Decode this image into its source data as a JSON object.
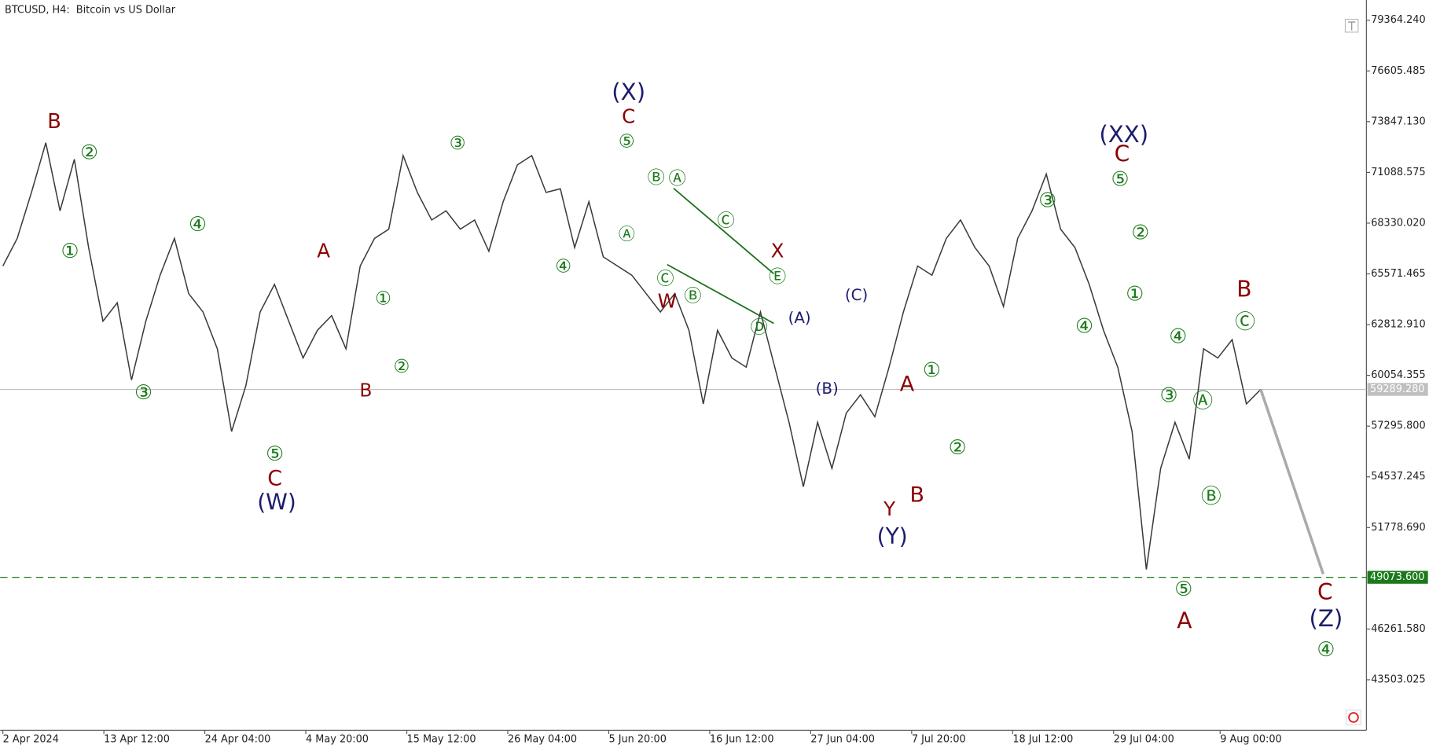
{
  "header": {
    "title": "BTCUSD, H4:  Bitcoin vs US Dollar"
  },
  "chart_data": {
    "type": "line",
    "color": "#3a3a3a",
    "values": [
      66000,
      67500,
      70000,
      72700,
      69000,
      71800,
      67000,
      63000,
      64000,
      59800,
      63000,
      65500,
      67500,
      64500,
      63500,
      61500,
      57000,
      59500,
      63500,
      65000,
      63000,
      61000,
      62500,
      63300,
      61500,
      66000,
      67500,
      68000,
      72000,
      70000,
      68500,
      69000,
      68000,
      68500,
      66800,
      69500,
      71500,
      72000,
      70000,
      70200,
      67000,
      69500,
      66500,
      66000,
      65500,
      64500,
      63500,
      64500,
      62500,
      58500,
      62500,
      61000,
      60500,
      63500,
      60500,
      57500,
      54000,
      57500,
      55000,
      58000,
      59000,
      57800,
      60500,
      63500,
      66000,
      65500,
      67500,
      68500,
      67000,
      66000,
      63800,
      67500,
      69000,
      71000,
      68000,
      67000,
      65000,
      62500,
      60500,
      57000,
      49500,
      55000,
      57500,
      55500,
      61500,
      61000,
      62000,
      58500,
      59289.28
    ],
    "forecast": [
      59289.28,
      49250
    ],
    "forecast_color": "#aaaaaa",
    "ylim": [
      40755,
      80463
    ],
    "yticks": [
      {
        "value": 79364.24,
        "label": "79364.240"
      },
      {
        "value": 76605.485,
        "label": "76605.485"
      },
      {
        "value": 73847.13,
        "label": "73847.130"
      },
      {
        "value": 71088.575,
        "label": "71088.575"
      },
      {
        "value": 68330.02,
        "label": "68330.020"
      },
      {
        "value": 65571.465,
        "label": "65571.465"
      },
      {
        "value": 62812.91,
        "label": "62812.910"
      },
      {
        "value": 60054.355,
        "label": "60054.355"
      },
      {
        "value": 57295.8,
        "label": "57295.800"
      },
      {
        "value": 54537.245,
        "label": "54537.245"
      },
      {
        "value": 51778.69,
        "label": "51778.690"
      },
      {
        "value": 46261.58,
        "label": "46261.580"
      },
      {
        "value": 43503.025,
        "label": "43503.025"
      }
    ],
    "x_labels": [
      "2 Apr 2024",
      "13 Apr 12:00",
      "24 Apr 04:00",
      "4 May 20:00",
      "15 May 12:00",
      "26 May 04:00",
      "5 Jun 20:00",
      "16 Jun 12:00",
      "27 Jun 04:00",
      "7 Jul 20:00",
      "18 Jul 12:00",
      "29 Jul 04:00",
      "9 Aug 00:00"
    ],
    "price_levels": [
      {
        "value": 59289.28,
        "label": "59289.280",
        "color": "#c0c0c0",
        "dashed": false
      },
      {
        "value": 49073.6,
        "label": "49073.600",
        "color": "#1a7a1a",
        "dashed": true
      }
    ],
    "annotations": [
      {
        "text": "B",
        "color": "#8b0000"
      },
      {
        "text": "②",
        "color": "#1a7a1a"
      },
      {
        "text": "①",
        "color": "#1a7a1a"
      },
      {
        "text": "③",
        "color": "#1a7a1a"
      },
      {
        "text": "④",
        "color": "#1a7a1a"
      },
      {
        "text": "A",
        "color": "#8b0000"
      },
      {
        "text": "①",
        "color": "#1a7a1a"
      },
      {
        "text": "②",
        "color": "#1a7a1a"
      },
      {
        "text": "B",
        "color": "#8b0000"
      },
      {
        "text": "⑤",
        "color": "#1a7a1a"
      },
      {
        "text": "C",
        "color": "#8b0000"
      },
      {
        "text": "(W)",
        "color": "#1c1c6e"
      },
      {
        "text": "③",
        "color": "#1a7a1a"
      },
      {
        "text": "④",
        "color": "#1a7a1a"
      },
      {
        "text": "(X)",
        "color": "#1c1c6e"
      },
      {
        "text": "C",
        "color": "#8b0000"
      },
      {
        "text": "⑤",
        "color": "#1a7a1a"
      },
      {
        "text": "Ⓐ",
        "color": "#1a7a1a"
      },
      {
        "text": "Ⓑ",
        "color": "#1a7a1a"
      },
      {
        "text": "Ⓐ",
        "color": "#1a7a1a"
      },
      {
        "text": "Ⓒ",
        "color": "#1a7a1a"
      },
      {
        "text": "X",
        "color": "#8b0000"
      },
      {
        "text": "Ⓔ",
        "color": "#1a7a1a"
      },
      {
        "text": "Ⓒ",
        "color": "#1a7a1a"
      },
      {
        "text": "W",
        "color": "#8b0000"
      },
      {
        "text": "Ⓑ",
        "color": "#1a7a1a"
      },
      {
        "text": "Ⓓ",
        "color": "#1a7a1a"
      },
      {
        "text": "(A)",
        "color": "#1c1c6e"
      },
      {
        "text": "(C)",
        "color": "#1c1c6e"
      },
      {
        "text": "(B)",
        "color": "#1c1c6e"
      },
      {
        "text": "A",
        "color": "#8b0000"
      },
      {
        "text": "①",
        "color": "#1a7a1a"
      },
      {
        "text": "②",
        "color": "#1a7a1a"
      },
      {
        "text": "B",
        "color": "#8b0000"
      },
      {
        "text": "Y",
        "color": "#8b0000"
      },
      {
        "text": "(Y)",
        "color": "#1c1c6e"
      },
      {
        "text": "③",
        "color": "#1a7a1a"
      },
      {
        "text": "④",
        "color": "#1a7a1a"
      },
      {
        "text": "(XX)",
        "color": "#1c1c6e"
      },
      {
        "text": "C",
        "color": "#8b0000"
      },
      {
        "text": "⑤",
        "color": "#1a7a1a"
      },
      {
        "text": "②",
        "color": "#1a7a1a"
      },
      {
        "text": "①",
        "color": "#1a7a1a"
      },
      {
        "text": "④",
        "color": "#1a7a1a"
      },
      {
        "text": "③",
        "color": "#1a7a1a"
      },
      {
        "text": "Ⓐ",
        "color": "#1a7a1a"
      },
      {
        "text": "Ⓑ",
        "color": "#1a7a1a"
      },
      {
        "text": "⑤",
        "color": "#1a7a1a"
      },
      {
        "text": "A",
        "color": "#8b0000"
      },
      {
        "text": "B",
        "color": "#8b0000"
      },
      {
        "text": "Ⓒ",
        "color": "#1a7a1a"
      },
      {
        "text": "C",
        "color": "#8b0000"
      },
      {
        "text": "(Z)",
        "color": "#1c1c6e"
      },
      {
        "text": "④",
        "color": "#1a7a1a"
      }
    ]
  }
}
